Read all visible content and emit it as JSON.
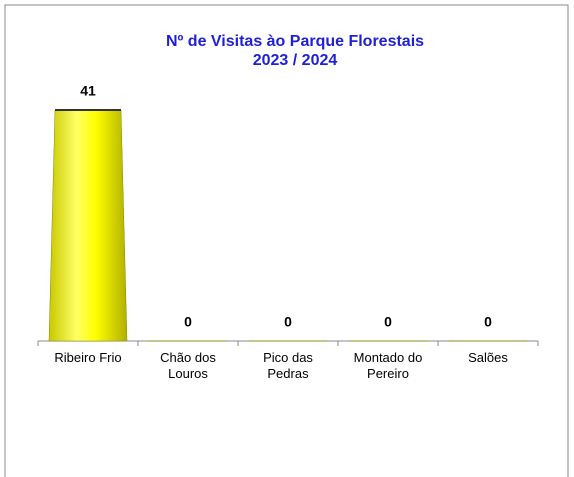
{
  "chart_data": {
    "type": "bar",
    "title": [
      "Nº de Visitas ào Parque Florestais",
      "2023 / 2024"
    ],
    "categories": [
      "Ribeiro Frio",
      "Chão dos Louros",
      "Pico das Pedras",
      "Montado do Pereiro",
      "Salões"
    ],
    "values": [
      41,
      0,
      0,
      0,
      0
    ],
    "color": "#ffff00"
  }
}
